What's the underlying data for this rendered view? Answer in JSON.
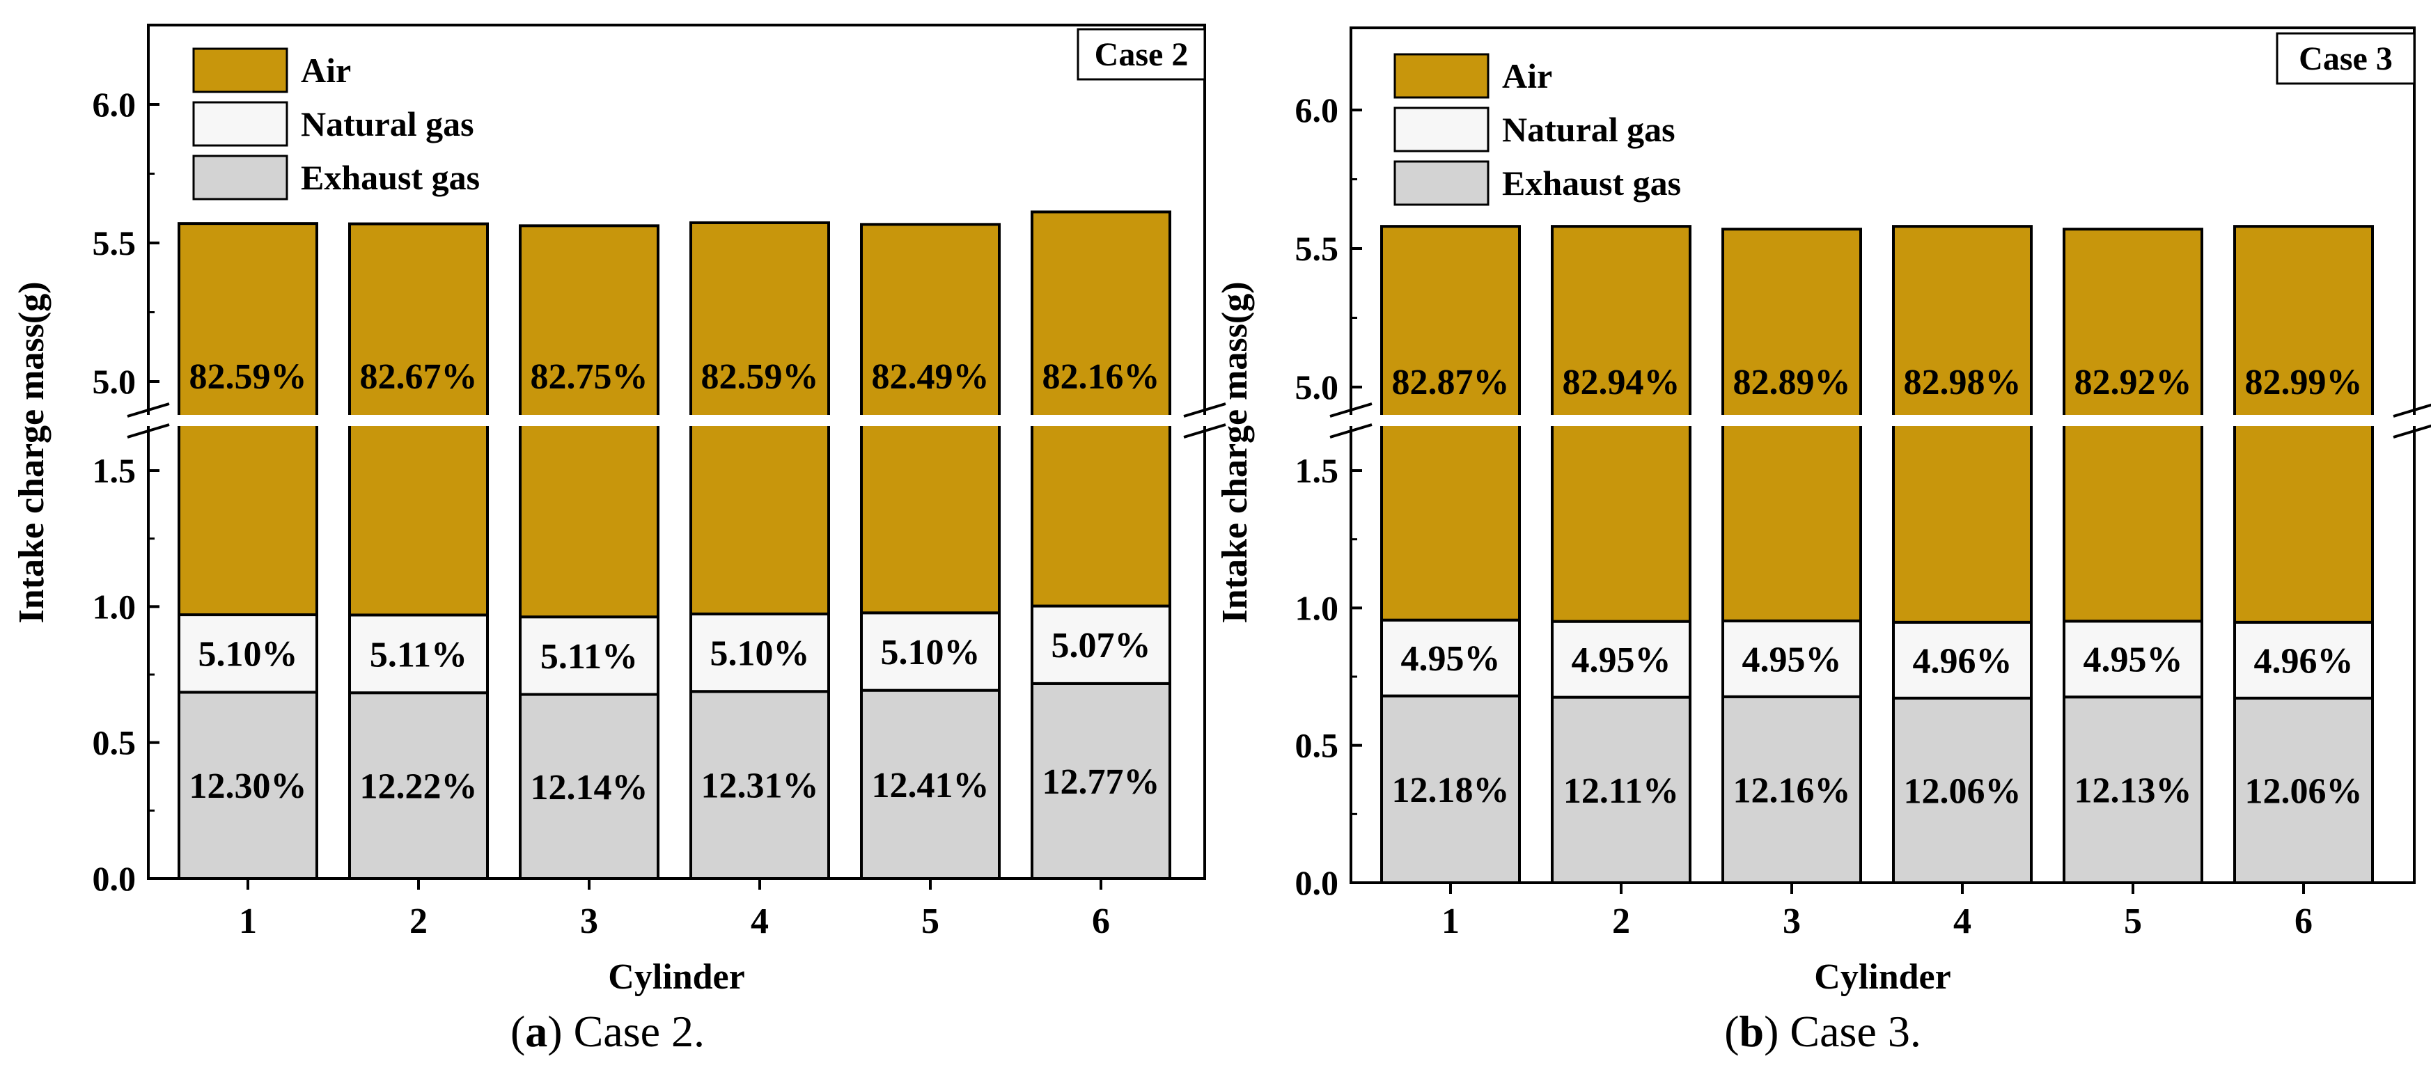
{
  "chart_data": [
    {
      "type": "bar",
      "stacked": true,
      "panel": "a",
      "case_label": "Case 2",
      "caption": {
        "letter": "a",
        "text": ") Case 2."
      },
      "xlabel": "Cylinder",
      "ylabel": "Intake charge mass(g)",
      "categories": [
        "1",
        "2",
        "3",
        "4",
        "5",
        "6"
      ],
      "axis_break": {
        "lower": [
          0,
          1.65
        ],
        "upper": [
          4.85,
          6.25
        ]
      },
      "yticks_lower": [
        "0.0",
        "0.5",
        "1.0",
        "1.5"
      ],
      "yticks_upper": [
        "5.0",
        "5.5",
        "6.0"
      ],
      "legend_position": "top-left",
      "series": [
        {
          "name": "Exhaust gas",
          "color": "#d3d3d3",
          "values": [
            0.685,
            0.683,
            0.677,
            0.688,
            0.692,
            0.717
          ],
          "labels": [
            "12.30%",
            "12.22%",
            "12.14%",
            "12.31%",
            "12.41%",
            "12.77%"
          ]
        },
        {
          "name": "Natural gas",
          "color": "#f7f7f7",
          "values": [
            0.285,
            0.286,
            0.285,
            0.285,
            0.285,
            0.285
          ],
          "labels": [
            "5.10%",
            "5.11%",
            "5.11%",
            "5.10%",
            "5.10%",
            "5.07%"
          ]
        },
        {
          "name": "Air",
          "color": "#c8960c",
          "values": [
            4.6,
            4.6,
            4.6,
            4.6,
            4.59,
            4.61
          ],
          "labels": [
            "82.59%",
            "82.67%",
            "82.75%",
            "82.59%",
            "82.49%",
            "82.16%"
          ]
        }
      ],
      "totals": [
        5.57,
        5.57,
        5.56,
        5.57,
        5.57,
        5.61
      ]
    },
    {
      "type": "bar",
      "stacked": true,
      "panel": "b",
      "case_label": "Case 3",
      "caption": {
        "letter": "b",
        "text": ") Case 3."
      },
      "xlabel": "Cylinder",
      "ylabel": "Intake charge mass(g)",
      "categories": [
        "1",
        "2",
        "3",
        "4",
        "5",
        "6"
      ],
      "axis_break": {
        "lower": [
          0,
          1.65
        ],
        "upper": [
          4.85,
          6.25
        ]
      },
      "yticks_lower": [
        "0.0",
        "0.5",
        "1.0",
        "1.5"
      ],
      "yticks_upper": [
        "5.0",
        "5.5",
        "6.0"
      ],
      "legend_position": "top-left",
      "series": [
        {
          "name": "Exhaust gas",
          "color": "#d3d3d3",
          "values": [
            0.68,
            0.675,
            0.677,
            0.672,
            0.676,
            0.672
          ],
          "labels": [
            "12.18%",
            "12.11%",
            "12.16%",
            "12.06%",
            "12.13%",
            "12.06%"
          ]
        },
        {
          "name": "Natural gas",
          "color": "#f7f7f7",
          "values": [
            0.276,
            0.276,
            0.276,
            0.276,
            0.276,
            0.276
          ],
          "labels": [
            "4.95%",
            "4.95%",
            "4.95%",
            "4.96%",
            "4.95%",
            "4.96%"
          ]
        },
        {
          "name": "Air",
          "color": "#c8960c",
          "values": [
            4.624,
            4.629,
            4.617,
            4.632,
            4.618,
            4.632
          ],
          "labels": [
            "82.87%",
            "82.94%",
            "82.89%",
            "82.98%",
            "82.92%",
            "82.99%"
          ]
        }
      ],
      "totals": [
        5.58,
        5.58,
        5.57,
        5.58,
        5.57,
        5.58
      ]
    }
  ]
}
